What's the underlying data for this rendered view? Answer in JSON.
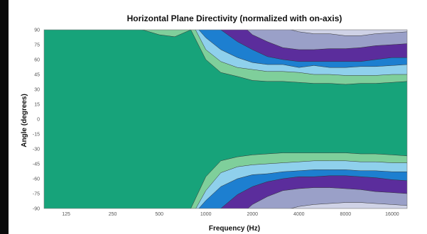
{
  "chart_data": {
    "type": "heatmap",
    "subtype": "filled-contour",
    "title": "Horizontal Plane Directivity (normalized with on-axis)",
    "xlabel": "Frequency (Hz)",
    "ylabel": "Angle (degrees)",
    "x_scale": "log",
    "x_ticks": [
      125,
      250,
      500,
      1000,
      2000,
      4000,
      8000,
      16000
    ],
    "x_tick_labels": [
      "125",
      "250",
      "500",
      "1000",
      "2000",
      "4000",
      "8000",
      "16000"
    ],
    "y_ticks": [
      90,
      75,
      60,
      45,
      30,
      15,
      0,
      -15,
      -30,
      -45,
      -60,
      -75,
      -90
    ],
    "y_tick_labels": [
      "90",
      "75",
      "60",
      "45",
      "30",
      "15",
      "0",
      "-15",
      "-30",
      "-45",
      "-60",
      "-75",
      "-90"
    ],
    "xlim": [
      90,
      20000
    ],
    "ylim": [
      -90,
      90
    ],
    "grid": false,
    "legend": "none",
    "levels": [
      {
        "band": 1,
        "color": "#17a37a"
      },
      {
        "band": 2,
        "color": "#7fcf9b"
      },
      {
        "band": 3,
        "color": "#8fd0ec"
      },
      {
        "band": 4,
        "color": "#1d7fd0"
      },
      {
        "band": 5,
        "color": "#5b2d9c"
      },
      {
        "band": 6,
        "color": "#9aa0c8"
      },
      {
        "band": 7,
        "color": "#cfd2e6"
      }
    ],
    "frequencies": [
      90,
      125,
      250,
      500,
      630,
      800,
      1000,
      1250,
      1600,
      2000,
      2500,
      3150,
      4000,
      5000,
      6300,
      8000,
      10000,
      12500,
      16000,
      20000
    ],
    "boundaries_upper": [
      [
        99,
        99,
        99,
        85,
        83,
        90,
        60,
        47,
        43,
        39,
        38,
        38,
        37,
        36,
        36,
        35,
        36,
        36,
        37,
        38
      ],
      [
        99,
        99,
        99,
        99,
        99,
        99,
        70,
        58,
        52,
        50,
        48,
        48,
        47,
        45,
        45,
        44,
        44,
        44,
        45,
        45
      ],
      [
        99,
        99,
        99,
        99,
        99,
        99,
        82,
        70,
        62,
        57,
        55,
        55,
        52,
        54,
        52,
        52,
        53,
        53,
        54,
        55
      ],
      [
        99,
        99,
        99,
        99,
        99,
        99,
        99,
        90,
        78,
        70,
        63,
        60,
        58,
        58,
        58,
        58,
        58,
        60,
        62,
        62
      ],
      [
        99,
        99,
        99,
        99,
        99,
        99,
        99,
        99,
        99,
        85,
        78,
        72,
        70,
        70,
        71,
        71,
        72,
        74,
        75,
        76
      ],
      [
        99,
        99,
        99,
        99,
        99,
        99,
        99,
        99,
        99,
        99,
        96,
        92,
        88,
        86,
        86,
        84,
        84,
        86,
        87,
        88
      ]
    ],
    "boundaries_lower": [
      [
        -99,
        -99,
        -99,
        -99,
        -99,
        -90,
        -58,
        -42,
        -38,
        -36,
        -35,
        -34,
        -34,
        -34,
        -34,
        -34,
        -35,
        -35,
        -36,
        -37
      ],
      [
        -99,
        -99,
        -99,
        -99,
        -99,
        -99,
        -72,
        -54,
        -48,
        -46,
        -45,
        -44,
        -43,
        -42,
        -42,
        -42,
        -43,
        -43,
        -44,
        -44
      ],
      [
        -99,
        -99,
        -99,
        -99,
        -99,
        -99,
        -82,
        -68,
        -60,
        -56,
        -55,
        -53,
        -52,
        -51,
        -51,
        -51,
        -52,
        -52,
        -53,
        -53
      ],
      [
        -99,
        -99,
        -99,
        -99,
        -99,
        -99,
        -99,
        -90,
        -76,
        -68,
        -63,
        -60,
        -58,
        -58,
        -57,
        -57,
        -58,
        -59,
        -61,
        -62
      ],
      [
        -99,
        -99,
        -99,
        -99,
        -99,
        -99,
        -99,
        -99,
        -99,
        -86,
        -78,
        -72,
        -70,
        -69,
        -69,
        -70,
        -71,
        -73,
        -74,
        -75
      ],
      [
        -99,
        -99,
        -99,
        -99,
        -99,
        -99,
        -99,
        -99,
        -99,
        -99,
        -96,
        -92,
        -88,
        -86,
        -85,
        -84,
        -84,
        -85,
        -86,
        -87
      ]
    ]
  }
}
